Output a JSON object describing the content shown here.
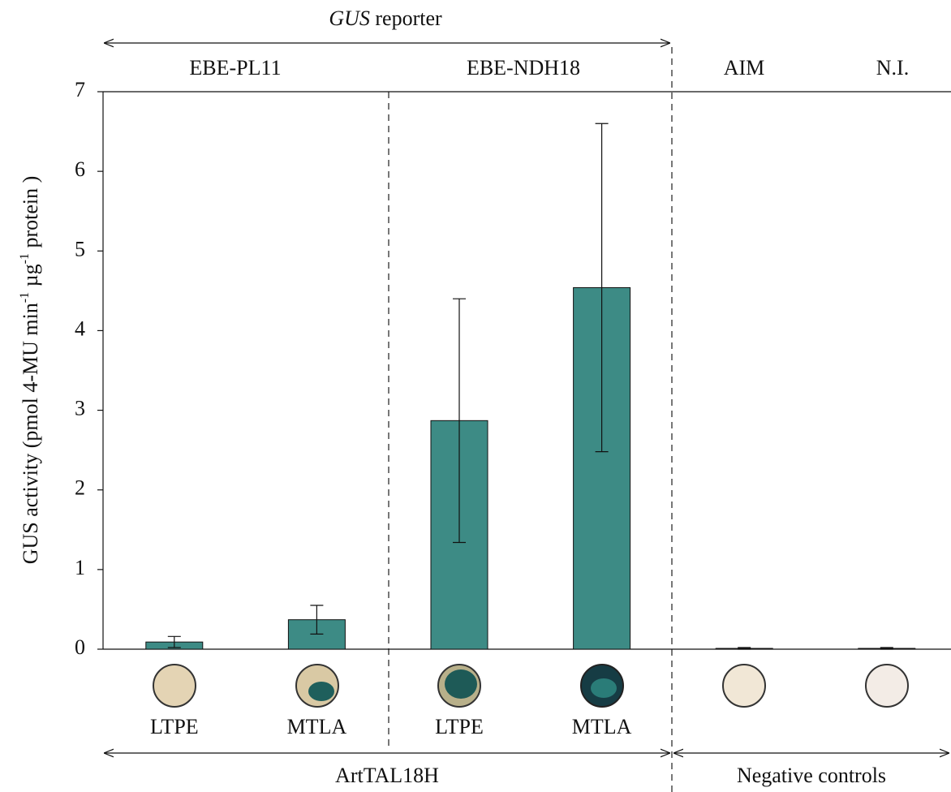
{
  "chart_data": {
    "type": "bar",
    "top_annotation": {
      "italic": "GUS",
      "rest": "reporter"
    },
    "group_labels": [
      "EBE-PL11",
      "EBE-NDH18",
      "AIM",
      "N.I."
    ],
    "bottom_labels": [
      "ArtTAL18H",
      "Negative controls"
    ],
    "y_label": [
      "GUS activity (pmol 4-MU min",
      "-1",
      " µg",
      "-1",
      " protein )"
    ],
    "categories": [
      "LTPE",
      "MTLA",
      "LTPE",
      "MTLA",
      null,
      null
    ],
    "values": [
      0.09,
      0.37,
      2.87,
      4.54,
      0.01,
      0.01
    ],
    "errors": [
      0.07,
      0.18,
      1.53,
      2.06,
      0.01,
      0.01
    ],
    "color": "#3d8b85",
    "ylim": [
      0,
      7
    ],
    "yticks": [
      0,
      1,
      2,
      3,
      4,
      5,
      6,
      7
    ]
  }
}
